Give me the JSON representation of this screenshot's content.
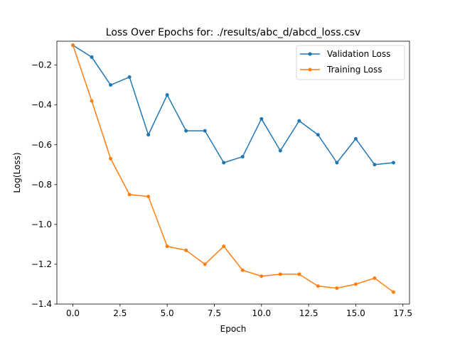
{
  "chart_data": {
    "type": "line",
    "title": "Loss Over Epochs for: ./results/abc_d/abcd_loss.csv",
    "xlabel": "Epoch",
    "ylabel": "Log(Loss)",
    "xlim": [
      -0.85,
      17.85
    ],
    "ylim": [
      -1.4,
      -0.08
    ],
    "xticks": [
      0.0,
      2.5,
      5.0,
      7.5,
      10.0,
      12.5,
      15.0,
      17.5
    ],
    "xtick_labels": [
      "0.0",
      "2.5",
      "5.0",
      "7.5",
      "10.0",
      "12.5",
      "15.0",
      "17.5"
    ],
    "yticks": [
      -1.4,
      -1.2,
      -1.0,
      -0.8,
      -0.6,
      -0.4,
      -0.2
    ],
    "ytick_labels": [
      "−1.4",
      "−1.2",
      "−1.0",
      "−0.8",
      "−0.6",
      "−0.4",
      "−0.2"
    ],
    "grid": false,
    "legend_position": "top-right",
    "x": [
      0,
      1,
      2,
      3,
      4,
      5,
      6,
      7,
      8,
      9,
      10,
      11,
      12,
      13,
      14,
      15,
      16,
      17
    ],
    "series": [
      {
        "name": "Validation Loss",
        "color": "#1f77b4",
        "values": [
          -0.1,
          -0.16,
          -0.3,
          -0.26,
          -0.55,
          -0.35,
          -0.53,
          -0.53,
          -0.69,
          -0.66,
          -0.47,
          -0.63,
          -0.48,
          -0.55,
          -0.69,
          -0.57,
          -0.7,
          -0.69
        ]
      },
      {
        "name": "Training Loss",
        "color": "#ff7f0e",
        "values": [
          -0.1,
          -0.38,
          -0.67,
          -0.85,
          -0.86,
          -1.11,
          -1.13,
          -1.2,
          -1.11,
          -1.23,
          -1.26,
          -1.25,
          -1.25,
          -1.31,
          -1.32,
          -1.3,
          -1.27,
          -1.34
        ]
      }
    ]
  }
}
